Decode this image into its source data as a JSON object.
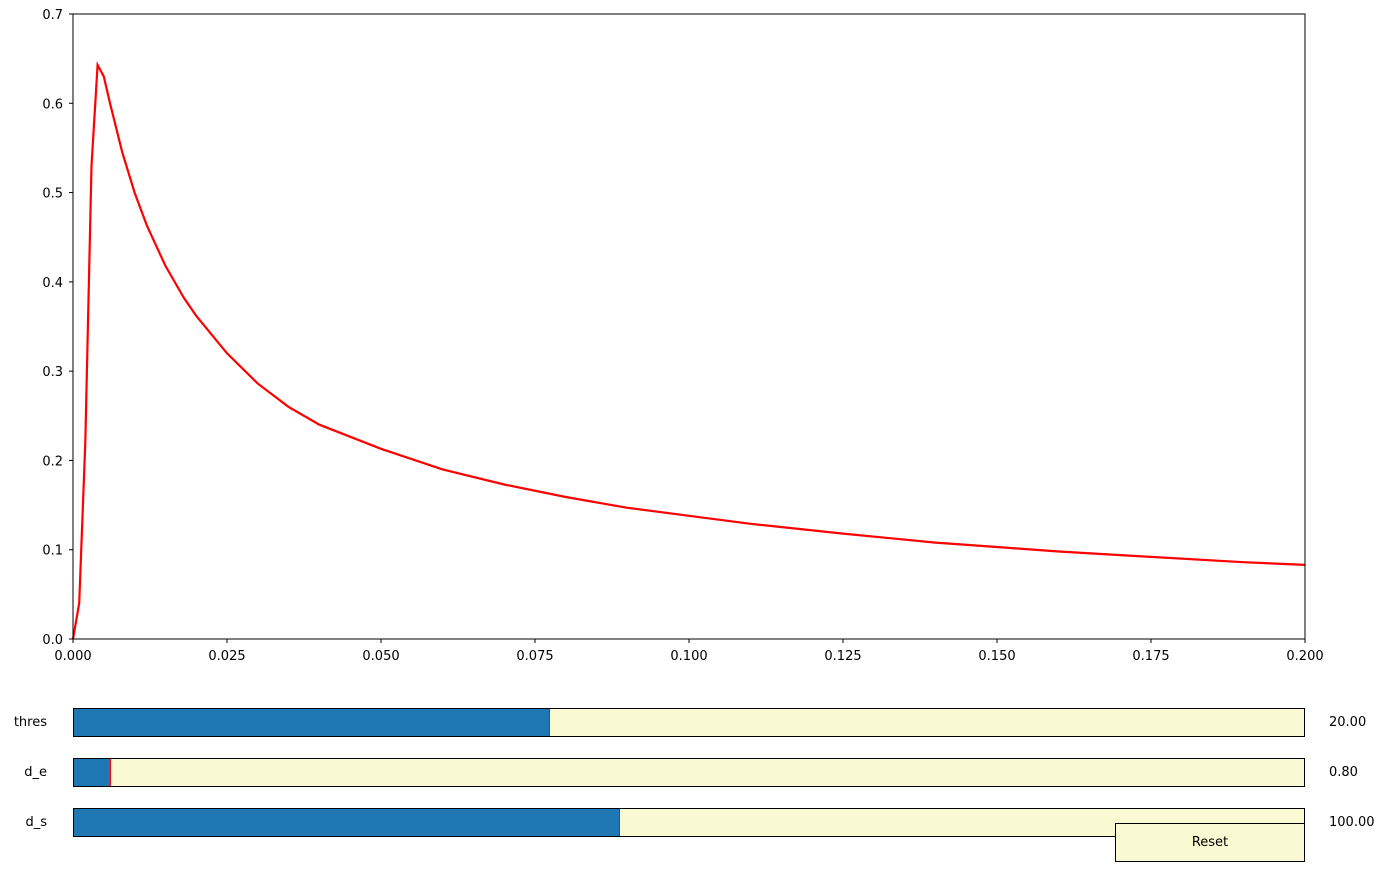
{
  "chart_data": {
    "type": "line",
    "title": "",
    "xlabel": "",
    "ylabel": "",
    "xlim": [
      0.0,
      0.2
    ],
    "ylim": [
      0.0,
      0.7
    ],
    "grid": false,
    "x_ticks": [
      "0.000",
      "0.025",
      "0.050",
      "0.075",
      "0.100",
      "0.125",
      "0.150",
      "0.175",
      "0.200"
    ],
    "y_ticks": [
      "0.0",
      "0.1",
      "0.2",
      "0.3",
      "0.4",
      "0.5",
      "0.6",
      "0.7"
    ],
    "series": [
      {
        "color": "#ff0000",
        "x": [
          0.0,
          0.001,
          0.002,
          0.003,
          0.004,
          0.005,
          0.006,
          0.008,
          0.01,
          0.012,
          0.015,
          0.018,
          0.02,
          0.025,
          0.03,
          0.035,
          0.04,
          0.05,
          0.06,
          0.07,
          0.08,
          0.09,
          0.1,
          0.11,
          0.125,
          0.14,
          0.15,
          0.16,
          0.175,
          0.19,
          0.2
        ],
        "y": [
          0.0,
          0.04,
          0.22,
          0.53,
          0.643,
          0.63,
          0.6,
          0.545,
          0.5,
          0.463,
          0.418,
          0.382,
          0.362,
          0.32,
          0.286,
          0.26,
          0.24,
          0.213,
          0.19,
          0.173,
          0.159,
          0.147,
          0.138,
          0.129,
          0.118,
          0.108,
          0.103,
          0.098,
          0.092,
          0.086,
          0.083
        ]
      }
    ]
  },
  "sliders": [
    {
      "label": "thres",
      "value_text": "20.00",
      "fraction": 0.387
    },
    {
      "label": "d_e",
      "value_text": "0.80",
      "fraction": 0.03
    },
    {
      "label": "d_s",
      "value_text": "100.00",
      "fraction": 0.444
    }
  ],
  "reset_label": "Reset",
  "colors": {
    "fill": "#1f77b4",
    "track": "#fafad2",
    "marker": "#ff0000",
    "line": "#ff0000"
  }
}
